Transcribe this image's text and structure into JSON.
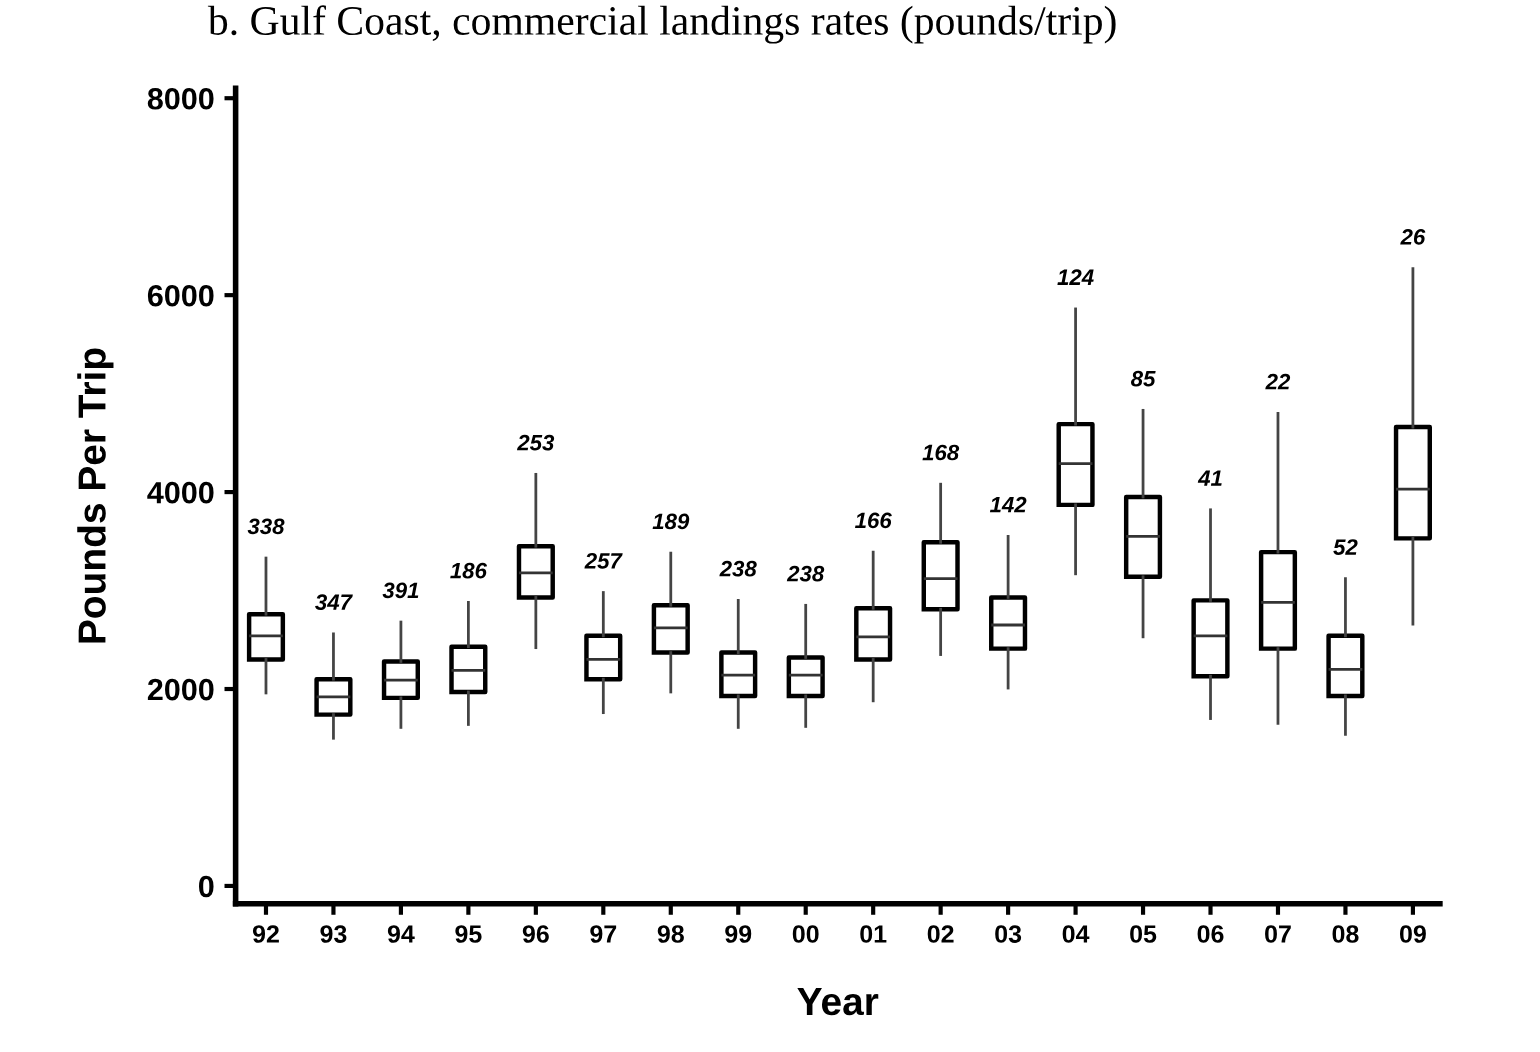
{
  "chart_data": {
    "type": "box",
    "title": "b. Gulf Coast, commercial landings rates (pounds/trip)",
    "xlabel": "Year",
    "ylabel": "Pounds Per Trip",
    "categories": [
      "92",
      "93",
      "94",
      "95",
      "96",
      "97",
      "98",
      "99",
      "00",
      "01",
      "02",
      "03",
      "04",
      "05",
      "06",
      "07",
      "08",
      "09"
    ],
    "boxes": [
      {
        "low": 1960,
        "q1": 2300,
        "median": 2540,
        "q3": 2760,
        "high": 3330
      },
      {
        "low": 1500,
        "q1": 1740,
        "median": 1920,
        "q3": 2100,
        "high": 2560
      },
      {
        "low": 1610,
        "q1": 1910,
        "median": 2090,
        "q3": 2280,
        "high": 2680
      },
      {
        "low": 1640,
        "q1": 1970,
        "median": 2190,
        "q3": 2430,
        "high": 2880
      },
      {
        "low": 2420,
        "q1": 2930,
        "median": 3180,
        "q3": 3450,
        "high": 4180
      },
      {
        "low": 1760,
        "q1": 2100,
        "median": 2300,
        "q3": 2540,
        "high": 2980
      },
      {
        "low": 1970,
        "q1": 2370,
        "median": 2620,
        "q3": 2850,
        "high": 3380
      },
      {
        "low": 1610,
        "q1": 1930,
        "median": 2140,
        "q3": 2370,
        "high": 2900
      },
      {
        "low": 1620,
        "q1": 1930,
        "median": 2140,
        "q3": 2320,
        "high": 2850
      },
      {
        "low": 1880,
        "q1": 2300,
        "median": 2530,
        "q3": 2820,
        "high": 3390
      },
      {
        "low": 2350,
        "q1": 2810,
        "median": 3120,
        "q3": 3490,
        "high": 4080
      },
      {
        "low": 2010,
        "q1": 2410,
        "median": 2650,
        "q3": 2930,
        "high": 3550
      },
      {
        "low": 3170,
        "q1": 3870,
        "median": 4290,
        "q3": 4690,
        "high": 5860
      },
      {
        "low": 2530,
        "q1": 3140,
        "median": 3550,
        "q3": 3950,
        "high": 4830
      },
      {
        "low": 1700,
        "q1": 2130,
        "median": 2540,
        "q3": 2900,
        "high": 3820
      },
      {
        "low": 1650,
        "q1": 2410,
        "median": 2880,
        "q3": 3390,
        "high": 4800
      },
      {
        "low": 1540,
        "q1": 1930,
        "median": 2200,
        "q3": 2540,
        "high": 3120
      },
      {
        "low": 2660,
        "q1": 3530,
        "median": 4030,
        "q3": 4660,
        "high": 6270
      }
    ],
    "annotations": [
      {
        "text": "338",
        "x": "92",
        "y": 3330
      },
      {
        "text": "347",
        "x": "93",
        "y": 2560
      },
      {
        "text": "391",
        "x": "94",
        "y": 2680
      },
      {
        "text": "186",
        "x": "95",
        "y": 2880
      },
      {
        "text": "253",
        "x": "96",
        "y": 4180
      },
      {
        "text": "257",
        "x": "97",
        "y": 2980
      },
      {
        "text": "189",
        "x": "98",
        "y": 3380
      },
      {
        "text": "238",
        "x": "99",
        "y": 2900
      },
      {
        "text": "238",
        "x": "00",
        "y": 2850
      },
      {
        "text": "166",
        "x": "01",
        "y": 3390
      },
      {
        "text": "168",
        "x": "02",
        "y": 4080
      },
      {
        "text": "142",
        "x": "03",
        "y": 3550
      },
      {
        "text": "124",
        "x": "04",
        "y": 5860
      },
      {
        "text": "85",
        "x": "05",
        "y": 4830
      },
      {
        "text": "41",
        "x": "06",
        "y": 3820
      },
      {
        "text": "22",
        "x": "07",
        "y": 4800
      },
      {
        "text": "52",
        "x": "08",
        "y": 3120
      },
      {
        "text": "26",
        "x": "09",
        "y": 6270
      }
    ],
    "ylim": [
      -180,
      8100
    ],
    "yticks": [
      0,
      2000,
      4000,
      6000,
      8000
    ],
    "grid": false,
    "legend": false
  }
}
